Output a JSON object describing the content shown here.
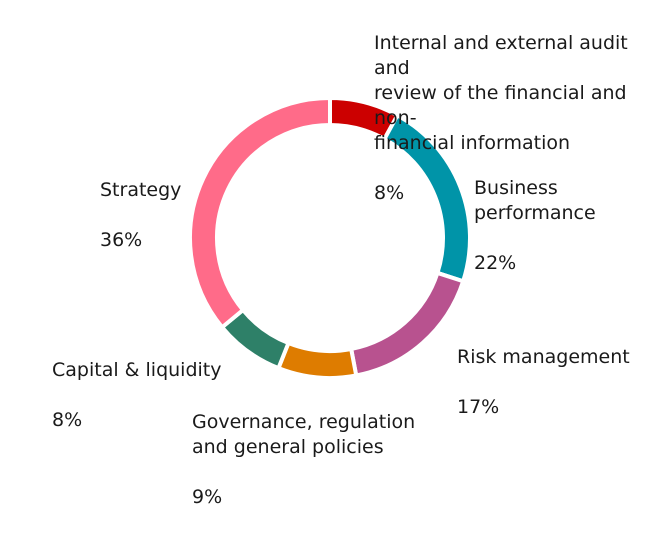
{
  "chart_data": {
    "type": "pie",
    "donut": true,
    "start": "top, clockwise",
    "categories": [
      "Internal and external audit and review of the financial and non-financial  information",
      "Business performance",
      "Risk management",
      "Governance, regulation and general policies",
      "Capital & liquidity",
      "Strategy"
    ],
    "values": [
      8,
      22,
      17,
      9,
      8,
      36
    ],
    "value_labels": [
      "8%",
      "22%",
      "17%",
      "9%",
      "8%",
      "36%"
    ],
    "colors": [
      "#cc0000",
      "#0094a8",
      "#b8528f",
      "#de7c00",
      "#2e8068",
      "#ff6b89"
    ],
    "label_lines": [
      [
        "Internal and external audit and",
        "review of the financial and non-",
        "financial  information"
      ],
      [
        "Business",
        "performance"
      ],
      [
        "Risk management"
      ],
      [
        "Governance, regulation",
        "and general policies"
      ],
      [
        "Capital & liquidity"
      ],
      [
        "Strategy"
      ]
    ]
  }
}
